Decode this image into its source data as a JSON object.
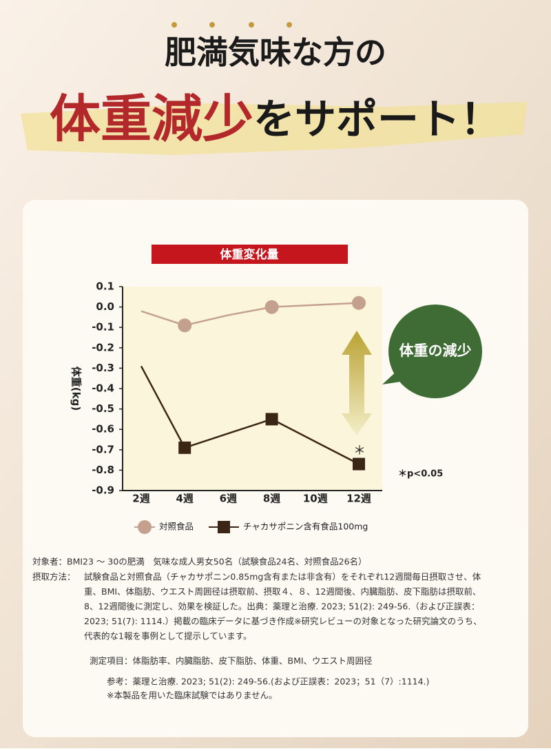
{
  "header": {
    "line1": "肥満気味な方の",
    "line2_red": "体重減少",
    "line2_black": "をサポート！"
  },
  "chart_data": {
    "type": "line",
    "title": "体重変化量",
    "ylabel": "体重(kg)",
    "categories": [
      "2週",
      "4週",
      "6週",
      "8週",
      "10週",
      "12週"
    ],
    "series": [
      {
        "name": "対照食品",
        "color": "#c4a08e",
        "values": [
          -0.02,
          -0.09,
          -0.04,
          0.0,
          0.01,
          0.02
        ],
        "marker": "circle",
        "marker_indices": [
          1,
          3,
          5
        ]
      },
      {
        "name": "チャカサポニン含有食品100mg",
        "color": "#3b2616",
        "values": [
          -0.29,
          -0.69,
          -0.62,
          -0.55,
          -0.66,
          -0.77
        ],
        "marker": "square",
        "marker_indices": [
          1,
          3,
          5
        ]
      }
    ],
    "ylim": [
      -0.9,
      0.1
    ],
    "yticks": [
      0.1,
      {
        "value": 0,
        "label": "0.0"
      },
      -0.1,
      -0.2,
      -0.3,
      -0.4,
      -0.5,
      -0.6,
      -0.7,
      -0.8,
      -0.9
    ],
    "annotations": [
      "＊",
      "＊p<0.05",
      "体重の減少"
    ]
  },
  "notes": {
    "subjects": "対象者：BMI23 ～ 30の肥満　気味な成人男女50名（試験食品24名、対照食品26名）",
    "method_label": "摂取方法：",
    "method_lines": [
      "試験食品と対照食品（チャカサポニン0.85mg含有または非含有）をそれぞれ12週間毎日摂取させ、体",
      "重、BMI、体脂肪、ウエスト周囲径は摂取前、摂取４、８、12週間後、内臓脂肪、皮下脂肪は摂取前、",
      "8、12週間後に測定し、効果を検証した。出典：薬理と治療. 2023; 51(2): 249-56.（および正誤表：",
      "2023; 51(7): 1114.）掲載の臨床データに基づき作成※研究レビューの対象となった研究論文のうち、",
      "代表的な1報を事例として提示しています。"
    ],
    "items": "測定項目：体脂肪率、内臓脂肪、皮下脂肪、体重、BMI、ウエスト周囲径",
    "reference": "参考：薬理と治療. 2023; 51(2): 249-56.(および正誤表：2023；51（7）:1114.)",
    "disclaimer": "※本製品を用いた臨床試験ではありません。"
  }
}
